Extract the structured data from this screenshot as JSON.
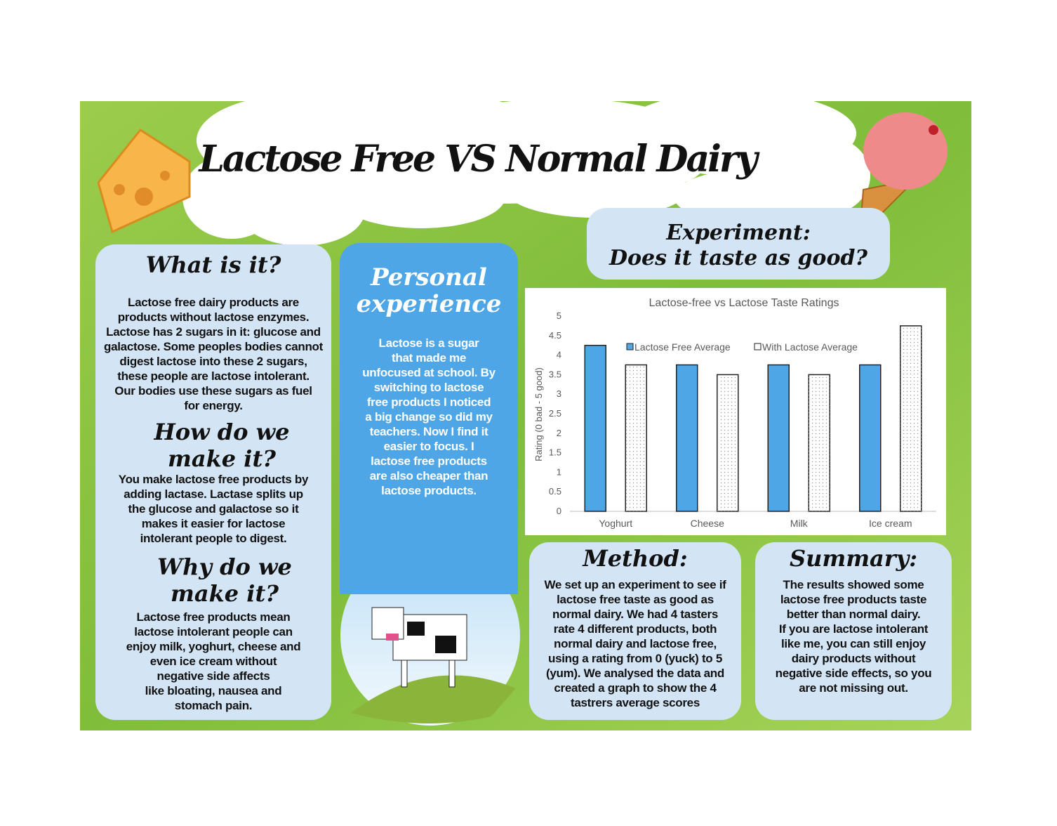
{
  "title": "Lactose Free VS Normal Dairy",
  "what_is_it": {
    "heading": "What is it?",
    "lines": [
      "Lactose free dairy products are",
      "products without lactose enzymes.",
      "Lactose has 2 sugars in it: glucose and",
      "galactose. Some peoples bodies cannot",
      "digest lactose into these 2 sugars,",
      "these people are lactose intolerant.",
      "Our bodies use these sugars as fuel",
      "for energy."
    ]
  },
  "how_do_we_make_it": {
    "heading": "How do we make it?",
    "lines": [
      "You make lactose free products by",
      "adding lactase. Lactase splits up",
      "the glucose and galactose so it",
      "makes it easier for lactose",
      "intolerant people to digest."
    ]
  },
  "why_do_we_make_it": {
    "heading": "Why do we make it?",
    "lines": [
      "Lactose free products mean",
      "lactose intolerant people can",
      "enjoy milk, yoghurt, cheese and",
      "even ice cream without",
      "negative side affects",
      "like bloating, nausea and",
      "stomach pain."
    ]
  },
  "personal_experience": {
    "heading": "Personal experience",
    "lines": [
      "Lactose is a sugar",
      "that made me",
      "unfocused at school. By",
      "switching to lactose",
      "free products I noticed",
      "a big change so did my",
      "teachers. Now I find it",
      "easier to focus. I",
      "lactose free products",
      "are also cheaper than",
      "lactose products."
    ]
  },
  "experiment": {
    "lines": [
      "Experiment:",
      "Does  it taste as good?"
    ]
  },
  "method": {
    "heading": "Method:",
    "lines": [
      "We set up an experiment to see if",
      "lactose free taste as good as",
      "normal dairy. We had 4 tasters",
      "rate 4 different products, both",
      "normal dairy and lactose free,",
      "using a rating from 0 (yuck) to 5",
      "(yum). We analysed the data and",
      "created a graph to show the 4",
      "tastrers average scores"
    ]
  },
  "summary": {
    "heading": "Summary:",
    "lines": [
      "The results showed some",
      "lactose free products taste",
      "better than normal dairy.",
      "If you are lactose intolerant",
      "like me, you can still enjoy",
      "dairy products without",
      "negative side effects, so you",
      "are not missing out."
    ]
  },
  "chart_data": {
    "type": "bar",
    "title": "Lactose-free vs Lactose Taste Ratings",
    "ylabel": "Rating (0 bad - 5 good)",
    "categories": [
      "Yoghurt",
      "Cheese",
      "Milk",
      "Ice cream"
    ],
    "series": [
      {
        "name": "Lactose Free Average",
        "color": "#4ea6e6",
        "values": [
          4.25,
          3.75,
          3.75,
          3.75
        ]
      },
      {
        "name": "With Lactose Average",
        "color": "#ffffff",
        "values": [
          3.75,
          3.5,
          3.5,
          4.75
        ]
      }
    ],
    "ylim": [
      0,
      5
    ],
    "yticks": [
      0,
      0.5,
      1,
      1.5,
      2,
      2.5,
      3,
      3.5,
      4,
      4.5,
      5
    ],
    "grid": false
  }
}
